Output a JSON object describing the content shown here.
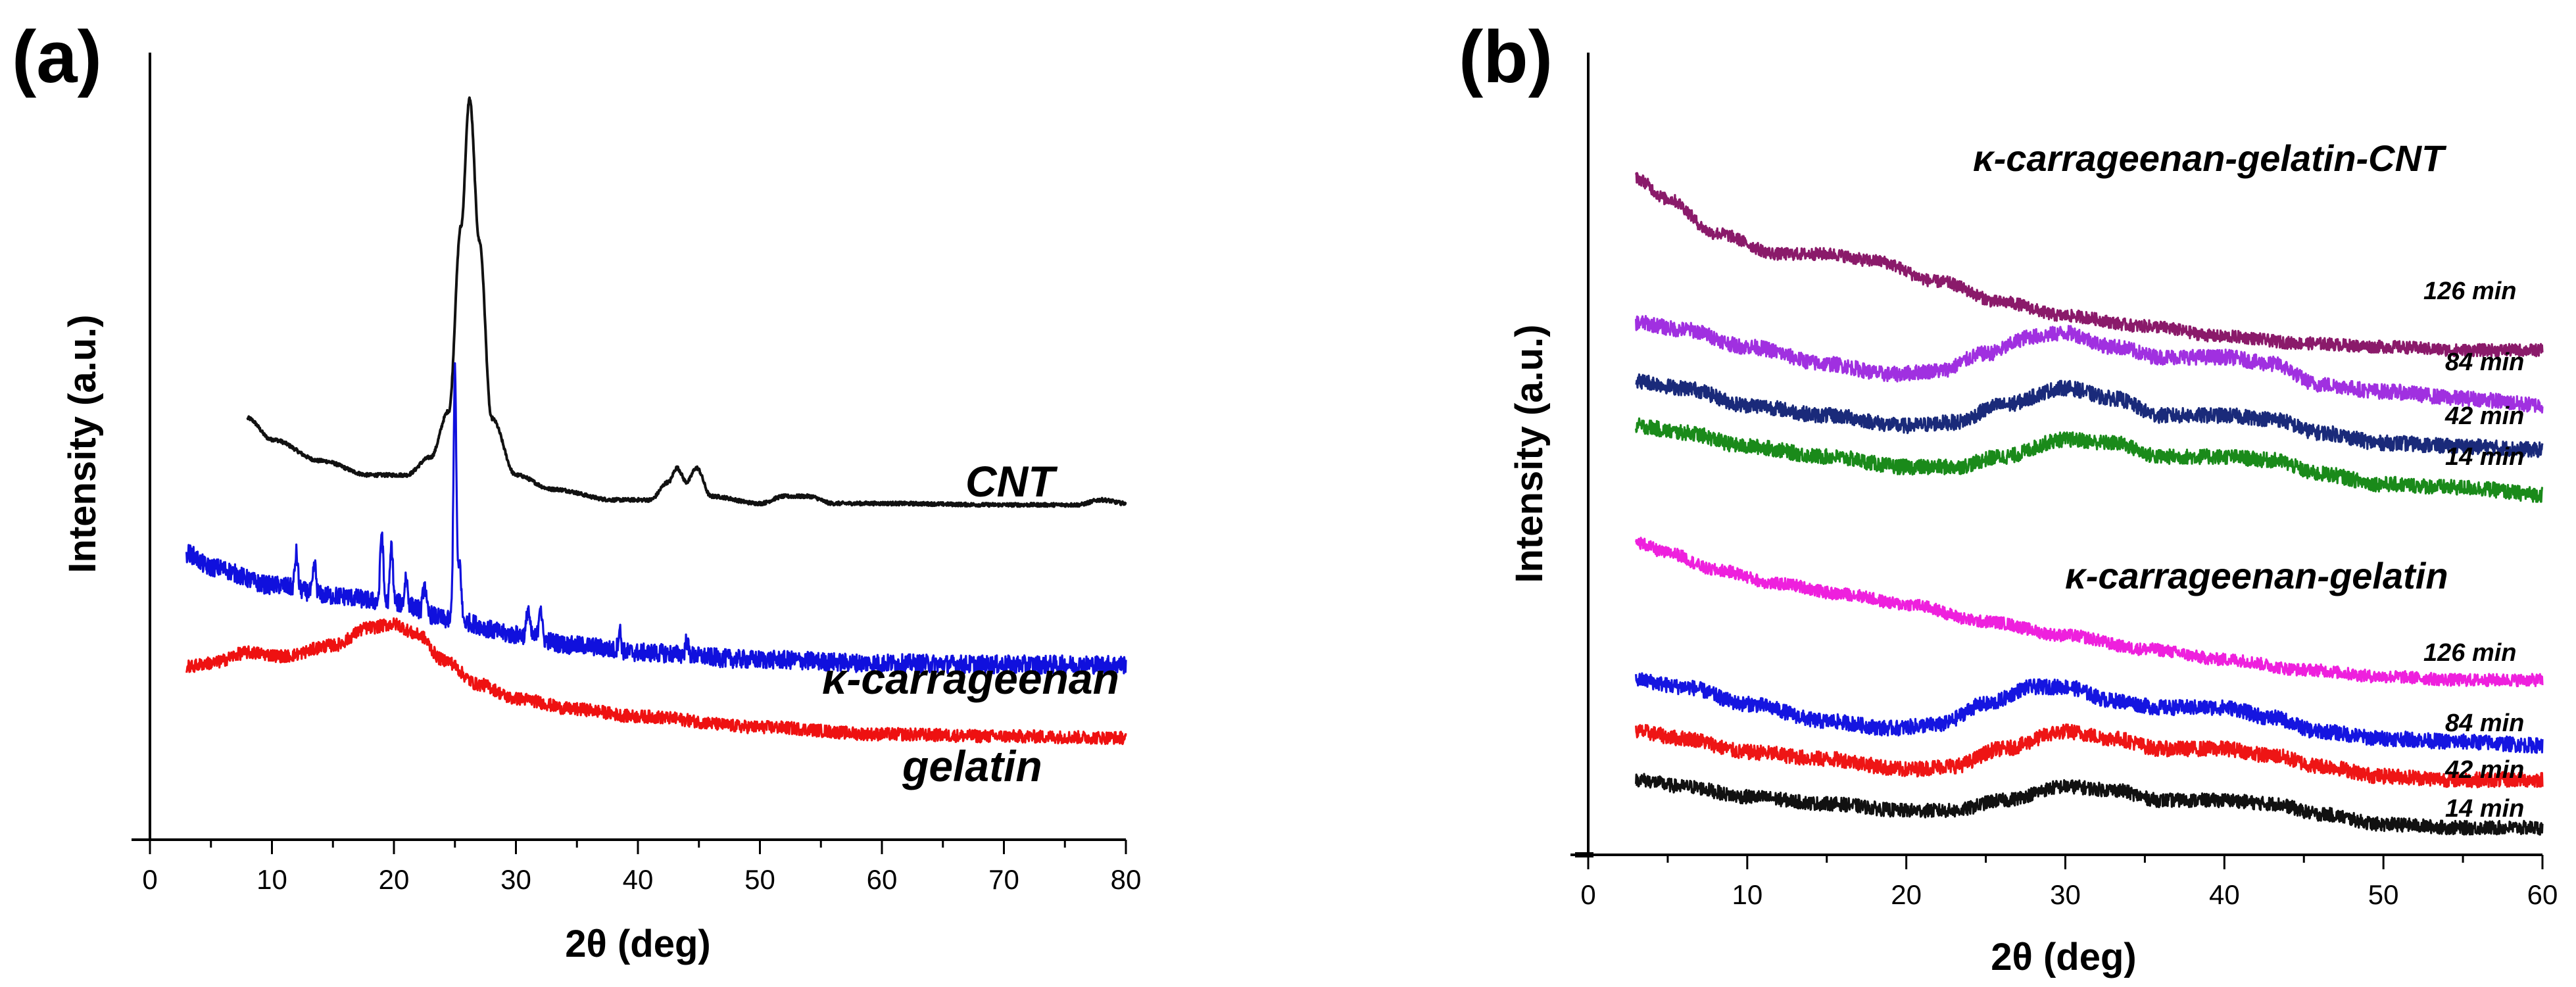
{
  "chart_data": [
    {
      "panel": "(a)",
      "type": "line",
      "xlabel": "2θ (deg)",
      "ylabel": "Intensity (a.u.)",
      "xlim": [
        0,
        80
      ],
      "xticks": [
        0,
        10,
        20,
        30,
        40,
        50,
        60,
        70,
        80
      ],
      "ylim": [
        0,
        100
      ],
      "series": [
        {
          "name": "CNT",
          "color": "#111111",
          "noise": 0.25,
          "peaks": [
            25.0
          ],
          "x": [
            8,
            10,
            14,
            18,
            21,
            23,
            24.5,
            25.5,
            26.2,
            27,
            28,
            30,
            33,
            38,
            41,
            42.5,
            43.2,
            44,
            44.8,
            46,
            50,
            52,
            54,
            56,
            60,
            70,
            76,
            78,
            80
          ],
          "y": [
            55,
            52,
            49,
            47,
            47,
            49.5,
            56,
            82,
            100,
            80,
            55,
            47,
            45,
            43.5,
            43.5,
            46,
            48,
            46,
            48,
            44,
            43,
            44,
            44,
            43,
            43,
            42.8,
            42.8,
            43.5,
            43
          ]
        },
        {
          "name": "κ-carrageenan",
          "color": "#1010dd",
          "noise": 1.3,
          "peaks": [
            12,
            13.5,
            19,
            19.8,
            21,
            22.5,
            25,
            25.4,
            31,
            32,
            38.5,
            44
          ],
          "x": [
            3,
            5,
            10,
            15,
            20,
            25,
            30,
            35,
            40,
            50,
            60,
            70,
            80
          ],
          "y": [
            36,
            34,
            31.5,
            30,
            29,
            26.5,
            24.5,
            23,
            22,
            21,
            20.5,
            20.3,
            20.3
          ],
          "spikes": [
            [
              12,
              5
            ],
            [
              13.5,
              4
            ],
            [
              19,
              10
            ],
            [
              19.8,
              8
            ],
            [
              21,
              4
            ],
            [
              22.5,
              4
            ],
            [
              25,
              35
            ],
            [
              25.4,
              8
            ],
            [
              31,
              4
            ],
            [
              32,
              5
            ],
            [
              38.5,
              3
            ],
            [
              44,
              2
            ]
          ]
        },
        {
          "name": "gelatin",
          "color": "#ee1111",
          "noise": 0.9,
          "peaks": [
            8,
            20
          ],
          "x": [
            3,
            5,
            8,
            11,
            15,
            18,
            20,
            22,
            24,
            27,
            30,
            35,
            40,
            50,
            60,
            70,
            80
          ],
          "y": [
            20,
            20.5,
            22,
            21.5,
            23,
            25.5,
            26,
            24.5,
            21,
            17.5,
            15.5,
            14,
            13,
            11.5,
            10.5,
            10.2,
            10
          ]
        }
      ],
      "labels": {
        "CNT": "CNT",
        "kappa": "κ-carrageenan",
        "gelatin": "gelatin"
      }
    },
    {
      "panel": "(b)",
      "type": "line",
      "xlabel": "2θ (deg)",
      "ylabel": "Intensity (a.u.)",
      "xlim": [
        0,
        60
      ],
      "xticks": [
        0,
        10,
        20,
        30,
        40,
        50,
        60
      ],
      "ylim": [
        0,
        100
      ],
      "series": [
        {
          "name": "κ-carrageenan-gelatin-CNT 126 min",
          "color": "#8a1a6a",
          "noise": 0.9,
          "peaks": [
            15
          ],
          "x": [
            3,
            5,
            8,
            12,
            15,
            18,
            22,
            26,
            30,
            35,
            40,
            45,
            50,
            55,
            60
          ],
          "y": [
            97,
            94,
            89,
            86,
            86,
            85,
            82,
            79,
            77,
            75.5,
            74,
            73,
            72.5,
            72,
            72
          ]
        },
        {
          "name": "κ-carrageenan-gelatin-CNT 84 min",
          "color": "#a030e0",
          "noise": 1.1,
          "peaks": [
            29
          ],
          "x": [
            3,
            6,
            10,
            15,
            19,
            22,
            25,
            28,
            30,
            33,
            36,
            40,
            43,
            46,
            50,
            55,
            60
          ],
          "y": [
            76,
            75,
            72.5,
            70,
            68.5,
            69,
            71.5,
            74,
            74.5,
            72.5,
            71,
            71,
            70,
            67,
            66,
            65,
            64
          ]
        },
        {
          "name": "κ-carrageenan-gelatin-CNT 42 min",
          "color": "#1a2a7a",
          "noise": 1.1,
          "peaks": [
            30
          ],
          "x": [
            3,
            6,
            10,
            15,
            20,
            23,
            26,
            30,
            33,
            36,
            40,
            43,
            46,
            50,
            55,
            60
          ],
          "y": [
            67.5,
            66.5,
            64,
            62.5,
            61,
            61.5,
            64,
            66.5,
            65,
            62.5,
            62.5,
            62,
            60,
            58.5,
            58,
            57.5
          ]
        },
        {
          "name": "κ-carrageenan-gelatin-CNT 14 min",
          "color": "#1a8a1a",
          "noise": 1.1,
          "peaks": [
            31
          ],
          "x": [
            3,
            6,
            10,
            15,
            20,
            23,
            26,
            30,
            33,
            36,
            40,
            43,
            46,
            50,
            55,
            60
          ],
          "y": [
            61,
            60,
            58,
            56.5,
            55,
            55,
            56.5,
            59,
            58.5,
            56.5,
            56.5,
            56,
            54,
            52.5,
            52,
            51
          ]
        },
        {
          "name": "κ-carrageenan-gelatin 126 min",
          "color": "#ee20dd",
          "noise": 0.9,
          "peaks": [],
          "x": [
            3,
            5,
            8,
            12,
            16,
            20,
            25,
            30,
            35,
            40,
            45,
            50,
            55,
            60
          ],
          "y": [
            44,
            42.5,
            40,
            38,
            36.5,
            35,
            32.5,
            30.5,
            28.5,
            27,
            25.5,
            24.5,
            24,
            24
          ]
        },
        {
          "name": "κ-carrageenan-gelatin 84 min",
          "color": "#1515e0",
          "noise": 1.1,
          "peaks": [
            29
          ],
          "x": [
            3,
            6,
            10,
            15,
            19,
            22,
            25,
            28,
            30,
            33,
            36,
            40,
            43,
            46,
            50,
            55,
            60
          ],
          "y": [
            24,
            23,
            20.5,
            18,
            17,
            17.5,
            20.5,
            23,
            23,
            21,
            20,
            20,
            18.5,
            16.5,
            15.5,
            15,
            14.5
          ]
        },
        {
          "name": "κ-carrageenan-gelatin 42 min",
          "color": "#ee1515",
          "noise": 1.1,
          "peaks": [
            30
          ],
          "x": [
            3,
            6,
            10,
            15,
            20,
            23,
            26,
            30,
            33,
            36,
            40,
            43,
            46,
            50,
            55,
            60
          ],
          "y": [
            16.5,
            15.5,
            13.5,
            12.5,
            11,
            11.5,
            14,
            16.5,
            15.5,
            14,
            14,
            13,
            11.5,
            10,
            9.5,
            9.5
          ]
        },
        {
          "name": "κ-carrageenan-gelatin 14 min",
          "color": "#111111",
          "noise": 1.0,
          "peaks": [
            31
          ],
          "x": [
            3,
            6,
            10,
            15,
            20,
            23,
            26,
            30,
            33,
            36,
            40,
            43,
            46,
            50,
            55,
            60
          ],
          "y": [
            9.5,
            8.5,
            7,
            6,
            5,
            5,
            6.5,
            8.5,
            8,
            6.5,
            6.5,
            6,
            4.5,
            3,
            2.5,
            2.5
          ]
        }
      ],
      "labels": {
        "group1": "κ-carrageenan-gelatin-CNT",
        "group2": "κ-carrageenan-gelatin",
        "t126a": "126 min",
        "t84a": "84 min",
        "t42a": "42 min",
        "t14a": "14 min",
        "t126b": "126 min",
        "t84b": "84 min",
        "t42b": "42 min",
        "t14b": "14 min"
      }
    }
  ]
}
